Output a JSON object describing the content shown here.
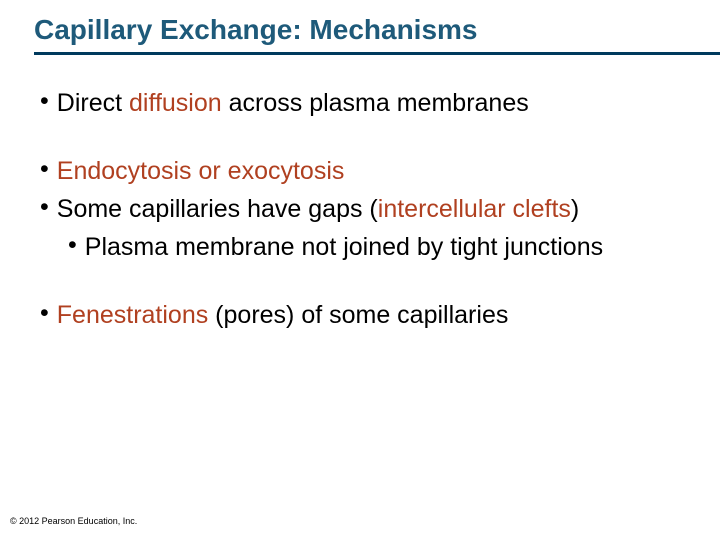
{
  "colors": {
    "title_color": "#1e5a7a",
    "underline_color": "#003a5d",
    "accent_color": "#b04020",
    "text_color": "#000000"
  },
  "title": "Capillary Exchange: Mechanisms",
  "bullets": {
    "b1_pre": "Direct ",
    "b1_accent": "diffusion",
    "b1_post": " across plasma membranes",
    "b2_accent": "Endocytosis or exocytosis",
    "b3_pre": "Some capillaries have gaps (",
    "b3_accent": "intercellular clefts",
    "b3_post": ")",
    "b3_sub": "Plasma membrane not joined by tight junctions",
    "b4_accent": "Fenestrations",
    "b4_post": " (pores) of some capillaries"
  },
  "copyright": "© 2012 Pearson Education, Inc."
}
